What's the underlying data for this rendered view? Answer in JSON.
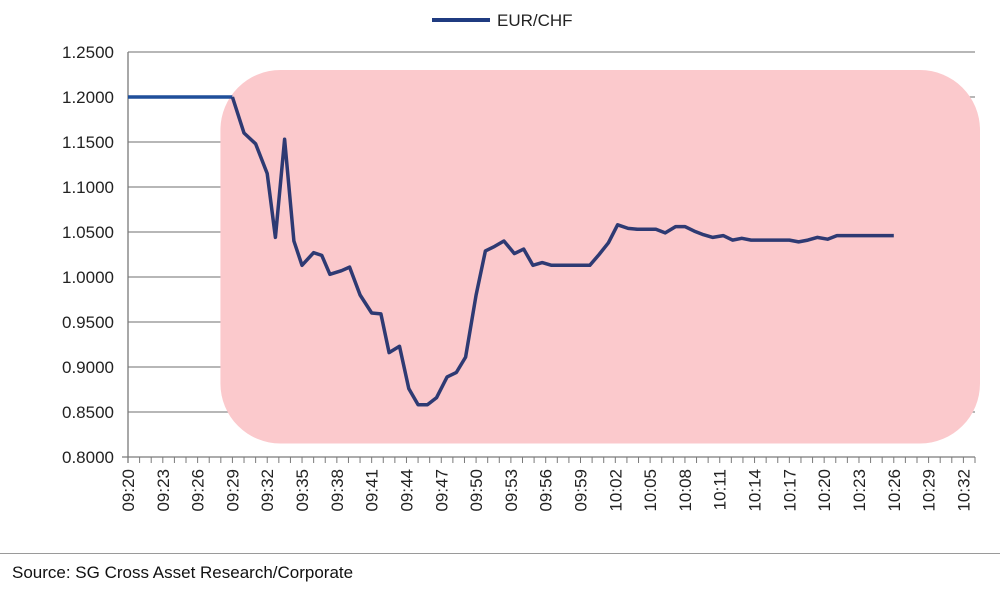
{
  "chart_data": {
    "type": "line",
    "legend": {
      "position": "top-center"
    },
    "series": [
      {
        "name": "EUR/CHF",
        "color": "#2e3a73",
        "values": [
          [
            0,
            1.2
          ],
          [
            1,
            1.2
          ],
          [
            2,
            1.2
          ],
          [
            3,
            1.2
          ],
          [
            4,
            1.2
          ],
          [
            5,
            1.2
          ],
          [
            6,
            1.2
          ],
          [
            7,
            1.2
          ],
          [
            8,
            1.2
          ],
          [
            9,
            1.2
          ],
          [
            10,
            1.16
          ],
          [
            11,
            1.148
          ],
          [
            12,
            1.115
          ],
          [
            12.7,
            1.044
          ],
          [
            13.5,
            1.153
          ],
          [
            14.3,
            1.04
          ],
          [
            15,
            1.013
          ],
          [
            16,
            1.027
          ],
          [
            16.7,
            1.024
          ],
          [
            17.4,
            1.003
          ],
          [
            18.4,
            1.007
          ],
          [
            19.1,
            1.011
          ],
          [
            20,
            0.98
          ],
          [
            21,
            0.96
          ],
          [
            21.8,
            0.959
          ],
          [
            22.5,
            0.916
          ],
          [
            23.4,
            0.923
          ],
          [
            24.2,
            0.876
          ],
          [
            25,
            0.858
          ],
          [
            25.8,
            0.858
          ],
          [
            26.6,
            0.866
          ],
          [
            27.5,
            0.889
          ],
          [
            28.3,
            0.894
          ],
          [
            29.1,
            0.911
          ],
          [
            30,
            0.98
          ],
          [
            30.8,
            1.029
          ],
          [
            31.6,
            1.034
          ],
          [
            32.4,
            1.04
          ],
          [
            33.3,
            1.026
          ],
          [
            34.1,
            1.031
          ],
          [
            34.9,
            1.013
          ],
          [
            35.7,
            1.016
          ],
          [
            36.5,
            1.013
          ],
          [
            37.3,
            1.013
          ],
          [
            38.2,
            1.013
          ],
          [
            39,
            1.013
          ],
          [
            39.8,
            1.013
          ],
          [
            40.6,
            1.025
          ],
          [
            41.4,
            1.038
          ],
          [
            42.2,
            1.058
          ],
          [
            43.1,
            1.054
          ],
          [
            43.9,
            1.053
          ],
          [
            44.7,
            1.053
          ],
          [
            45.5,
            1.053
          ],
          [
            46.3,
            1.049
          ],
          [
            47.2,
            1.056
          ],
          [
            48,
            1.056
          ],
          [
            48.8,
            1.051
          ],
          [
            49.6,
            1.047
          ],
          [
            50.4,
            1.044
          ],
          [
            51.3,
            1.046
          ],
          [
            52.1,
            1.041
          ],
          [
            52.9,
            1.043
          ],
          [
            53.7,
            1.041
          ],
          [
            54.5,
            1.041
          ],
          [
            55.4,
            1.041
          ],
          [
            56.2,
            1.041
          ],
          [
            57,
            1.041
          ],
          [
            57.8,
            1.039
          ],
          [
            58.6,
            1.041
          ],
          [
            59.4,
            1.044
          ],
          [
            60.3,
            1.042
          ],
          [
            61.1,
            1.046
          ],
          [
            61.9,
            1.046
          ],
          [
            62.7,
            1.046
          ],
          [
            63.5,
            1.046
          ],
          [
            64.3,
            1.046
          ],
          [
            65.2,
            1.046
          ],
          [
            66,
            1.046
          ]
        ]
      }
    ],
    "x": [
      "09:20",
      "09:21",
      "09:22",
      "09:23",
      "09:24",
      "09:25",
      "09:26",
      "09:27",
      "09:28",
      "09:29",
      "09:30",
      "09:31",
      "09:32",
      "09:33",
      "09:34",
      "09:35",
      "09:36",
      "09:37",
      "09:38",
      "09:39",
      "09:40",
      "09:41",
      "09:42",
      "09:43",
      "09:44",
      "09:45",
      "09:46",
      "09:47",
      "09:48",
      "09:49",
      "09:50",
      "09:51",
      "09:52",
      "09:53",
      "09:54",
      "09:55",
      "09:56",
      "09:57",
      "09:58",
      "09:59",
      "10:00",
      "10:01",
      "10:02",
      "10:03",
      "10:04",
      "10:05",
      "10:06",
      "10:07",
      "10:08",
      "10:09",
      "10:10",
      "10:11",
      "10:12",
      "10:13",
      "10:14",
      "10:15",
      "10:16",
      "10:17",
      "10:18",
      "10:19",
      "10:20",
      "10:21",
      "10:22",
      "10:23",
      "10:24",
      "10:25",
      "10:26",
      "10:27",
      "10:28",
      "10:29",
      "10:30",
      "10:31",
      "10:32",
      "10:33"
    ],
    "x_tick_labels": [
      "09:20",
      "09:23",
      "09:26",
      "09:29",
      "09:32",
      "09:35",
      "09:38",
      "09:41",
      "09:44",
      "09:47",
      "09:50",
      "09:53",
      "09:56",
      "09:59",
      "10:02",
      "10:05",
      "10:08",
      "10:11",
      "10:14",
      "10:17",
      "10:20",
      "10:23",
      "10:26",
      "10:29",
      "10:32"
    ],
    "y_tick_labels": [
      "0.8000",
      "0.8500",
      "0.9000",
      "0.9500",
      "1.0000",
      "1.0500",
      "1.1000",
      "1.1500",
      "1.2000",
      "1.2500"
    ],
    "ylim": [
      0.8,
      1.25
    ],
    "grid": {
      "horizontal": true,
      "vertical": false
    },
    "highlight_region": {
      "x_from": "09:29",
      "x_to": "10:33",
      "y_from": 0.815,
      "y_to": 1.23,
      "color": "#fbc9cc"
    },
    "title": "",
    "xlabel": "",
    "ylabel": ""
  },
  "source": "Source: SG Cross Asset Research/Corporate"
}
